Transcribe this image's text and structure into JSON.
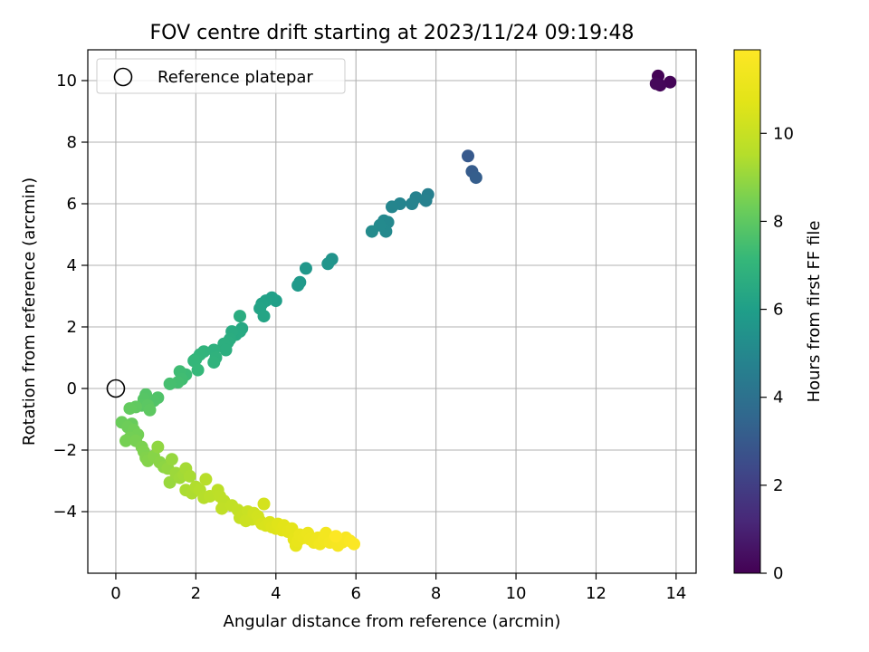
{
  "chart_data": {
    "type": "scatter",
    "title": "FOV centre drift starting at 2023/11/24 09:19:48",
    "xlabel": "Angular distance from reference (arcmin)",
    "ylabel": "Rotation from reference (arcmin)",
    "xlim": [
      -0.7,
      14.5
    ],
    "ylim": [
      -6.0,
      11.0
    ],
    "xticks": [
      0,
      2,
      4,
      6,
      8,
      10,
      12,
      14
    ],
    "yticks": [
      -4,
      -2,
      0,
      2,
      4,
      6,
      8,
      10
    ],
    "grid": true,
    "colormap": "viridis",
    "colorbar": {
      "label": "Hours from first FF file",
      "range": [
        0,
        11.9
      ],
      "ticks": [
        0,
        2,
        4,
        6,
        8,
        10
      ]
    },
    "legend": {
      "position": "top-left",
      "entries": [
        {
          "label": "Reference platepar",
          "marker": "open-circle"
        }
      ]
    },
    "reference": {
      "x": 0,
      "y": 0
    },
    "series": [
      {
        "encoding": "x,y,hours",
        "points": [
          [
            13.55,
            10.15,
            0.05
          ],
          [
            13.85,
            9.95,
            0.1
          ],
          [
            13.6,
            9.85,
            0.15
          ],
          [
            13.5,
            9.9,
            0.2
          ],
          [
            8.8,
            7.55,
            3.0
          ],
          [
            8.9,
            7.05,
            3.1
          ],
          [
            9.0,
            6.85,
            3.2
          ],
          [
            7.8,
            6.3,
            4.6
          ],
          [
            7.75,
            6.1,
            4.7
          ],
          [
            7.5,
            6.2,
            4.75
          ],
          [
            7.4,
            6.0,
            4.8
          ],
          [
            7.1,
            6.0,
            4.85
          ],
          [
            6.9,
            5.9,
            4.9
          ],
          [
            6.8,
            5.4,
            5.0
          ],
          [
            6.7,
            5.45,
            5.02
          ],
          [
            6.75,
            5.1,
            5.05
          ],
          [
            6.6,
            5.3,
            5.1
          ],
          [
            6.4,
            5.1,
            5.15
          ],
          [
            5.4,
            4.2,
            5.5
          ],
          [
            5.3,
            4.05,
            5.55
          ],
          [
            4.75,
            3.9,
            5.65
          ],
          [
            4.6,
            3.45,
            5.75
          ],
          [
            4.55,
            3.35,
            5.8
          ],
          [
            4.0,
            2.85,
            6.0
          ],
          [
            3.9,
            2.95,
            6.05
          ],
          [
            3.75,
            2.85,
            6.1
          ],
          [
            3.65,
            2.75,
            6.15
          ],
          [
            3.6,
            2.6,
            6.2
          ],
          [
            3.7,
            2.35,
            6.25
          ],
          [
            3.15,
            1.95,
            6.4
          ],
          [
            3.1,
            1.85,
            6.45
          ],
          [
            3.0,
            1.75,
            6.5
          ],
          [
            2.9,
            1.85,
            6.55
          ],
          [
            2.85,
            1.6,
            6.6
          ],
          [
            3.1,
            2.35,
            6.62
          ],
          [
            2.8,
            1.5,
            6.65
          ],
          [
            2.7,
            1.45,
            6.7
          ],
          [
            2.75,
            1.25,
            6.72
          ],
          [
            2.45,
            1.25,
            6.8
          ],
          [
            2.5,
            1.0,
            6.85
          ],
          [
            2.45,
            0.85,
            6.9
          ],
          [
            2.2,
            1.2,
            6.95
          ],
          [
            2.1,
            1.1,
            7.0
          ],
          [
            2.0,
            0.95,
            7.05
          ],
          [
            1.95,
            0.9,
            7.1
          ],
          [
            2.05,
            0.6,
            7.15
          ],
          [
            1.75,
            0.45,
            7.3
          ],
          [
            1.6,
            0.55,
            7.35
          ],
          [
            1.65,
            0.3,
            7.4
          ],
          [
            1.55,
            0.2,
            7.45
          ],
          [
            1.35,
            0.15,
            7.5
          ],
          [
            1.05,
            -0.3,
            7.7
          ],
          [
            0.95,
            -0.4,
            7.75
          ],
          [
            0.75,
            -0.2,
            7.8
          ],
          [
            0.7,
            -0.35,
            7.85
          ],
          [
            0.65,
            -0.55,
            7.9
          ],
          [
            0.8,
            -0.55,
            7.95
          ],
          [
            0.85,
            -0.7,
            8.0
          ],
          [
            0.5,
            -0.6,
            8.05
          ],
          [
            0.35,
            -0.65,
            8.1
          ],
          [
            0.4,
            -1.15,
            8.2
          ],
          [
            0.15,
            -1.1,
            8.25
          ],
          [
            0.3,
            -1.25,
            8.3
          ],
          [
            0.45,
            -1.35,
            8.35
          ],
          [
            0.55,
            -1.5,
            8.4
          ],
          [
            0.35,
            -1.6,
            8.42
          ],
          [
            0.25,
            -1.7,
            8.45
          ],
          [
            0.5,
            -1.7,
            8.5
          ],
          [
            0.65,
            -1.9,
            8.55
          ],
          [
            0.7,
            -2.05,
            8.6
          ],
          [
            0.75,
            -2.25,
            8.65
          ],
          [
            0.8,
            -2.35,
            8.7
          ],
          [
            0.95,
            -2.2,
            8.75
          ],
          [
            1.1,
            -2.4,
            8.8
          ],
          [
            1.2,
            -2.55,
            8.85
          ],
          [
            1.05,
            -1.9,
            8.9
          ],
          [
            1.3,
            -2.6,
            8.95
          ],
          [
            1.4,
            -2.3,
            9.0
          ],
          [
            1.35,
            -3.05,
            9.05
          ],
          [
            1.5,
            -2.75,
            9.1
          ],
          [
            1.6,
            -2.9,
            9.15
          ],
          [
            1.7,
            -2.8,
            9.2
          ],
          [
            1.75,
            -2.6,
            9.25
          ],
          [
            1.85,
            -2.85,
            9.3
          ],
          [
            1.75,
            -3.3,
            9.35
          ],
          [
            1.9,
            -3.4,
            9.4
          ],
          [
            2.0,
            -3.2,
            9.45
          ],
          [
            2.1,
            -3.3,
            9.5
          ],
          [
            2.2,
            -3.55,
            9.55
          ],
          [
            2.25,
            -2.95,
            9.6
          ],
          [
            2.35,
            -3.5,
            9.65
          ],
          [
            2.55,
            -3.3,
            9.7
          ],
          [
            2.6,
            -3.5,
            9.72
          ],
          [
            2.7,
            -3.65,
            9.75
          ],
          [
            2.65,
            -3.9,
            9.8
          ],
          [
            2.9,
            -3.8,
            9.85
          ],
          [
            3.05,
            -3.95,
            9.9
          ],
          [
            3.1,
            -4.2,
            9.95
          ],
          [
            3.2,
            -4.1,
            10.0
          ],
          [
            3.3,
            -4.0,
            10.05
          ],
          [
            3.25,
            -4.3,
            10.1
          ],
          [
            3.4,
            -4.25,
            10.15
          ],
          [
            3.45,
            -4.05,
            10.2
          ],
          [
            3.55,
            -4.15,
            10.25
          ],
          [
            3.6,
            -4.3,
            10.3
          ],
          [
            3.7,
            -3.75,
            10.35
          ],
          [
            3.65,
            -4.4,
            10.4
          ],
          [
            3.75,
            -4.45,
            10.45
          ],
          [
            3.85,
            -4.35,
            10.5
          ],
          [
            3.9,
            -4.5,
            10.55
          ],
          [
            4.0,
            -4.55,
            10.6
          ],
          [
            4.05,
            -4.4,
            10.65
          ],
          [
            4.15,
            -4.6,
            10.7
          ],
          [
            4.2,
            -4.45,
            10.75
          ],
          [
            4.3,
            -4.65,
            10.8
          ],
          [
            4.4,
            -4.55,
            10.85
          ],
          [
            4.45,
            -4.9,
            10.9
          ],
          [
            4.5,
            -5.1,
            10.95
          ],
          [
            4.55,
            -4.95,
            11.0
          ],
          [
            4.6,
            -4.75,
            11.05
          ],
          [
            4.7,
            -4.85,
            11.1
          ],
          [
            4.8,
            -4.7,
            11.15
          ],
          [
            4.85,
            -4.9,
            11.2
          ],
          [
            4.95,
            -5.0,
            11.25
          ],
          [
            5.05,
            -4.85,
            11.3
          ],
          [
            5.1,
            -5.05,
            11.35
          ],
          [
            5.2,
            -4.9,
            11.4
          ],
          [
            5.25,
            -4.7,
            11.45
          ],
          [
            5.35,
            -5.0,
            11.5
          ],
          [
            5.45,
            -4.9,
            11.55
          ],
          [
            5.55,
            -5.1,
            11.6
          ],
          [
            5.65,
            -5.0,
            11.65
          ],
          [
            5.75,
            -4.85,
            11.7
          ],
          [
            5.85,
            -4.95,
            11.75
          ],
          [
            5.95,
            -5.05,
            11.8
          ],
          [
            5.5,
            -4.8,
            11.85
          ]
        ]
      }
    ]
  }
}
